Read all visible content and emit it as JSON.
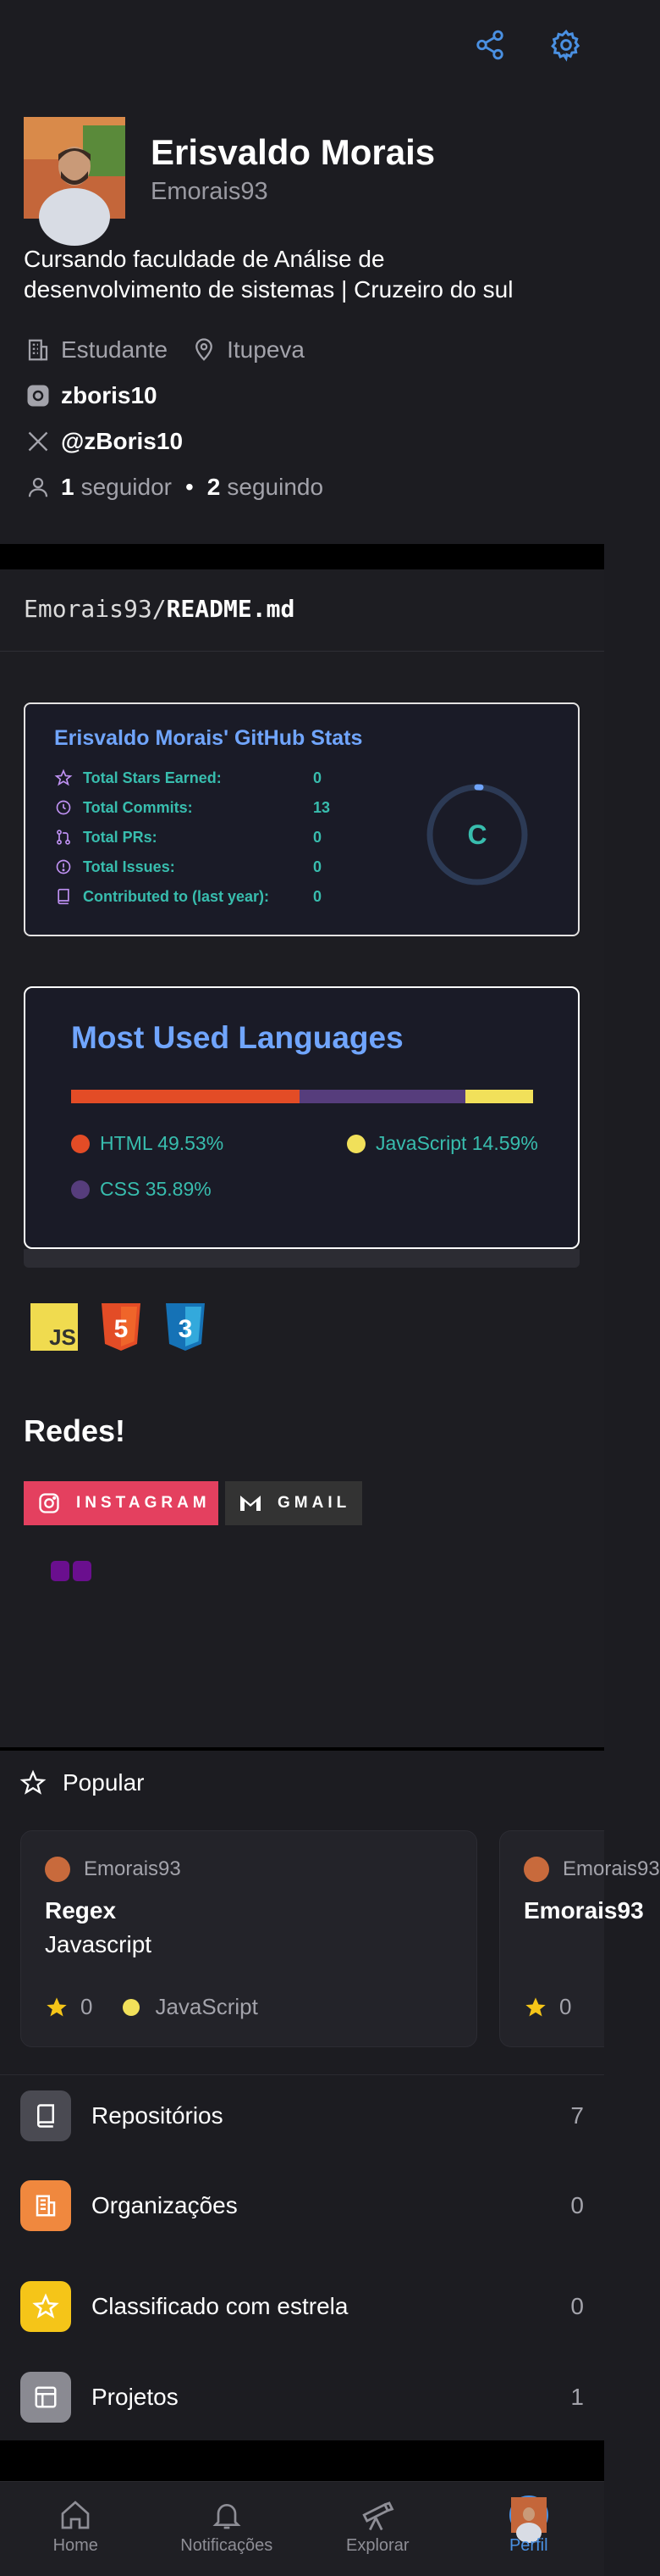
{
  "header": {
    "share_icon": "share-icon",
    "settings_icon": "gear-icon",
    "accent_color": "#4a90e2"
  },
  "profile": {
    "name": "Erisvaldo Morais",
    "username": "Emorais93",
    "bio": "Cursando faculdade de Análise de desenvolvimento de sistemas | Cruzeiro do sul",
    "occupation": "Estudante",
    "location": "Itupeva",
    "instagram": "zboris10",
    "twitter": "@zBoris10",
    "followers_count": "1",
    "followers_label": "seguidor",
    "following_count": "2",
    "following_label": "seguindo",
    "separator": "•"
  },
  "readme": {
    "path_prefix": "Emorais93/",
    "path_file": "README.md",
    "stats": {
      "title": "Erisvaldo Morais' GitHub Stats",
      "rows": [
        {
          "label": "Total Stars Earned:",
          "value": "0",
          "icon": "star-icon"
        },
        {
          "label": "Total Commits:",
          "value": "13",
          "icon": "history-icon"
        },
        {
          "label": "Total PRs:",
          "value": "0",
          "icon": "pull-request-icon"
        },
        {
          "label": "Total Issues:",
          "value": "0",
          "icon": "issue-icon"
        },
        {
          "label": "Contributed to (last year):",
          "value": "0",
          "icon": "repo-icon"
        }
      ],
      "grade": "C",
      "title_color": "#70a5fd",
      "text_color": "#38bdae",
      "icon_color": "#bf91f3"
    },
    "languages": {
      "title": "Most Used Languages",
      "items": [
        {
          "name": "HTML",
          "percent": 49.53,
          "label": "HTML 49.53%",
          "color": "#e34c26"
        },
        {
          "name": "CSS",
          "percent": 35.89,
          "label": "CSS 35.89%",
          "color": "#563d7c"
        },
        {
          "name": "JavaScript",
          "percent": 14.59,
          "label": "JavaScript 14.59%",
          "color": "#f1e05a"
        }
      ]
    },
    "tech_icons": [
      {
        "name": "javascript-icon",
        "text": "JS"
      },
      {
        "name": "html5-icon",
        "text": "5"
      },
      {
        "name": "css3-icon",
        "text": "3"
      }
    ],
    "redes_title": "Redes!",
    "badges": [
      {
        "label": "INSTAGRAM",
        "color": "#e4405f",
        "icon": "instagram-icon"
      },
      {
        "label": "GMAIL",
        "color": "#333333",
        "icon": "gmail-icon"
      }
    ]
  },
  "popular": {
    "title": "Popular",
    "cards": [
      {
        "owner": "Emorais93",
        "name": "Regex",
        "description": "Javascript",
        "stars": "0",
        "language": "JavaScript"
      },
      {
        "owner": "Emorais93",
        "name": "Emorais93",
        "description": "",
        "stars": "0",
        "language": ""
      }
    ]
  },
  "menu": [
    {
      "label": "Repositórios",
      "count": "7",
      "color": "#4a4a52",
      "icon": "repo-icon"
    },
    {
      "label": "Organizações",
      "count": "0",
      "color": "#f0883e",
      "icon": "organization-icon"
    },
    {
      "label": "Classificado com estrela",
      "count": "0",
      "color": "#f5c518",
      "icon": "star-icon"
    },
    {
      "label": "Projetos",
      "count": "1",
      "color": "#8a8a92",
      "icon": "project-icon"
    }
  ],
  "bottom_nav": [
    {
      "label": "Home",
      "icon": "home-icon",
      "active": false
    },
    {
      "label": "Notificações",
      "icon": "bell-icon",
      "active": false
    },
    {
      "label": "Explorar",
      "icon": "telescope-icon",
      "active": false
    },
    {
      "label": "Perfil",
      "icon": "avatar",
      "active": true
    }
  ]
}
